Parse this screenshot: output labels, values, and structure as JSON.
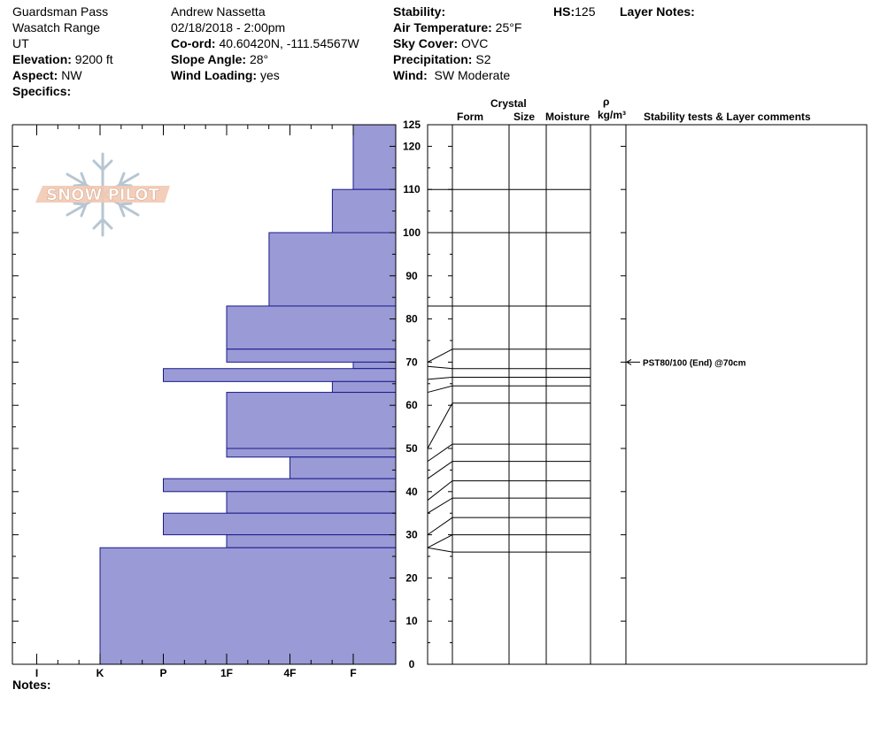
{
  "header": {
    "location": "Guardsman Pass",
    "range": "Wasatch Range",
    "state": "UT",
    "elevation_label": "Elevation:",
    "elevation": "9200 ft",
    "aspect_label": "Aspect:",
    "aspect": "NW",
    "specifics_label": "Specifics:",
    "observer": "Andrew Nassetta",
    "datetime": "02/18/2018 - 2:00pm",
    "coord_label": "Co-ord:",
    "coord": "40.60420N, -111.54567W",
    "slope_label": "Slope Angle:",
    "slope": "28°",
    "wind_loading_label": "Wind Loading:",
    "wind_loading": "yes",
    "stability_label": "Stability:",
    "stability": "",
    "air_temp_label": "Air Temperature:",
    "air_temp": "25°F",
    "sky_label": "Sky Cover:",
    "sky": "OVC",
    "precip_label": "Precipitation:",
    "precip": "S2",
    "wind_label": "Wind:",
    "wind": "SW Moderate",
    "hs_label": "HS:",
    "hs": "125",
    "layer_notes_label": "Layer Notes:"
  },
  "columns": {
    "crystal": "Crystal",
    "form": "Form",
    "size": "Size",
    "moisture": "Moisture",
    "rho": "ρ",
    "density_unit": "kg/m³",
    "stability_comments": "Stability tests & Layer comments"
  },
  "logo_text": "SNOW PILOT",
  "notes_label": "Notes:",
  "colors": {
    "hardness_fill": "#9a9ad6",
    "hardness_stroke": "#1a1a8c"
  },
  "chart_data": {
    "type": "bar",
    "orientation": "horizontal",
    "y_unit": "cm",
    "y_range": [
      0,
      125
    ],
    "y_ticks": [
      0,
      10,
      20,
      30,
      40,
      50,
      60,
      70,
      80,
      90,
      100,
      110,
      120,
      125
    ],
    "hardness_scale": [
      "I",
      "K",
      "P",
      "1F",
      "4F",
      "F"
    ],
    "hardness_values": {
      "F": 1,
      "4F": 2,
      "1F": 3,
      "P": 4,
      "K": 5,
      "I": 6
    },
    "layers": [
      {
        "top": 125,
        "bottom": 110,
        "hardness": "F"
      },
      {
        "top": 110,
        "bottom": 100,
        "hardness": "F+"
      },
      {
        "top": 100,
        "bottom": 83,
        "hardness": "4F+"
      },
      {
        "top": 83,
        "bottom": 73,
        "hardness": "1F"
      },
      {
        "top": 73,
        "bottom": 70,
        "hardness": "1F"
      },
      {
        "top": 70,
        "bottom": 68.5,
        "hardness": "F"
      },
      {
        "top": 68.5,
        "bottom": 65.5,
        "hardness": "P"
      },
      {
        "top": 65.5,
        "bottom": 63,
        "hardness": "F+"
      },
      {
        "top": 63,
        "bottom": 50,
        "hardness": "1F"
      },
      {
        "top": 50,
        "bottom": 48,
        "hardness": "1F"
      },
      {
        "top": 48,
        "bottom": 43,
        "hardness": "4F"
      },
      {
        "top": 43,
        "bottom": 40,
        "hardness": "P"
      },
      {
        "top": 40,
        "bottom": 35,
        "hardness": "1F"
      },
      {
        "top": 35,
        "bottom": 30,
        "hardness": "P"
      },
      {
        "top": 30,
        "bottom": 27,
        "hardness": "1F"
      },
      {
        "top": 27,
        "bottom": 0,
        "hardness": "K"
      }
    ],
    "hardness_numeric": [
      1,
      1.33,
      2.33,
      3,
      3,
      1,
      4,
      1.33,
      3,
      3,
      2,
      4,
      3,
      4,
      3,
      5
    ],
    "right_boundaries": [
      125,
      110,
      100,
      83,
      73,
      68.5,
      66.5,
      64.5,
      60.5,
      51,
      47,
      42.5,
      38.5,
      34,
      30,
      26
    ],
    "left_boundaries": [
      125,
      110,
      100,
      83,
      70,
      69,
      66,
      63,
      50,
      47,
      43,
      38,
      35,
      30,
      27
    ],
    "stability_tests": [
      {
        "depth": 70,
        "label": "PST80/100 (End) @70cm"
      }
    ]
  }
}
